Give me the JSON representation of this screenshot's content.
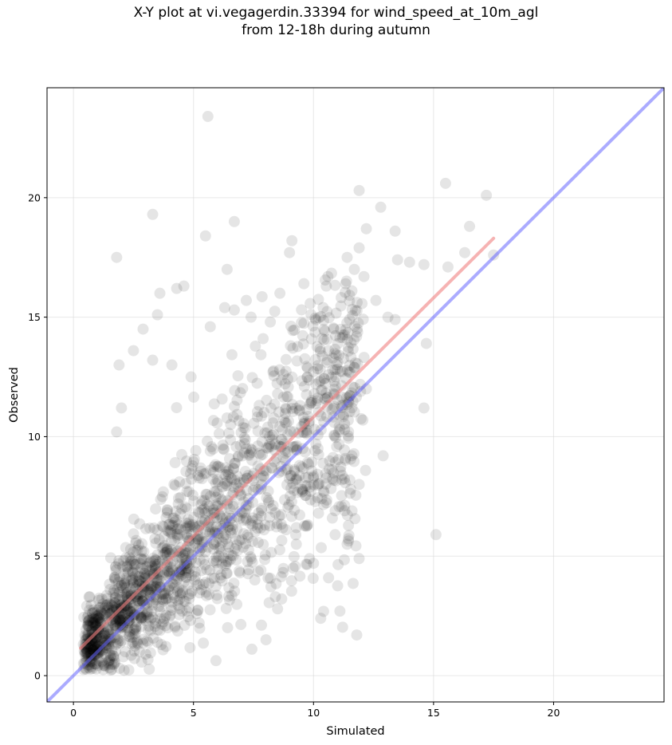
{
  "chart_data": {
    "type": "scatter",
    "title": [
      "X-Y plot at vi.vegagerdin.33394 for wind_speed_at_10m_agl",
      "from 12-18h during autumn"
    ],
    "xlabel": "Simulated",
    "ylabel": "Observed",
    "xlim": [
      -1.1,
      24.6
    ],
    "ylim": [
      -1.1,
      24.6
    ],
    "xticks": [
      0,
      5,
      10,
      15,
      20
    ],
    "yticks": [
      0,
      5,
      10,
      15,
      20
    ],
    "grid": true,
    "colors": {
      "points": "#000000",
      "fit_line": "#f08080",
      "identity_line": "#6666ff",
      "grid": "#d9d9d9"
    },
    "points_opacity": 0.1,
    "fit_line": {
      "x": [
        0.3,
        17.5
      ],
      "y": [
        1.15,
        18.3
      ]
    },
    "identity_line": {
      "x": [
        -1.1,
        24.6
      ],
      "y": [
        -1.1,
        24.6
      ]
    },
    "outliers": [
      [
        5.6,
        23.4
      ],
      [
        3.3,
        19.3
      ],
      [
        6.7,
        19.0
      ],
      [
        1.8,
        17.5
      ],
      [
        5.5,
        18.4
      ],
      [
        6.4,
        17.0
      ],
      [
        3.6,
        16.0
      ],
      [
        4.6,
        16.3
      ],
      [
        4.3,
        16.2
      ],
      [
        3.5,
        15.1
      ],
      [
        2.9,
        14.5
      ],
      [
        2.5,
        13.6
      ],
      [
        1.9,
        13.0
      ],
      [
        3.3,
        13.2
      ],
      [
        4.1,
        13.0
      ],
      [
        4.9,
        12.5
      ],
      [
        2.0,
        11.2
      ],
      [
        1.8,
        10.2
      ],
      [
        11.9,
        20.3
      ],
      [
        15.5,
        20.6
      ],
      [
        17.2,
        20.1
      ],
      [
        12.8,
        19.6
      ],
      [
        16.5,
        18.8
      ],
      [
        13.4,
        18.6
      ],
      [
        12.2,
        18.7
      ],
      [
        9.1,
        18.2
      ],
      [
        9.0,
        17.7
      ],
      [
        11.4,
        17.5
      ],
      [
        11.9,
        17.9
      ],
      [
        13.5,
        17.4
      ],
      [
        14.0,
        17.3
      ],
      [
        14.6,
        17.2
      ],
      [
        15.6,
        17.1
      ],
      [
        17.5,
        17.6
      ],
      [
        16.3,
        17.7
      ],
      [
        12.1,
        16.7
      ],
      [
        10.6,
        16.7
      ],
      [
        9.6,
        16.4
      ],
      [
        8.6,
        16.0
      ],
      [
        11.6,
        16.1
      ],
      [
        12.6,
        15.7
      ],
      [
        10.4,
        15.4
      ],
      [
        13.1,
        15.0
      ],
      [
        13.4,
        14.9
      ],
      [
        11.5,
        14.9
      ],
      [
        14.7,
        13.9
      ],
      [
        12.2,
        12.0
      ],
      [
        12.9,
        9.2
      ],
      [
        14.6,
        11.2
      ],
      [
        15.1,
        5.9
      ],
      [
        11.9,
        8.0
      ],
      [
        11.3,
        6.9
      ],
      [
        11.4,
        5.5
      ],
      [
        10.9,
        5.9
      ],
      [
        10.3,
        2.4
      ],
      [
        11.1,
        2.7
      ],
      [
        11.8,
        1.7
      ],
      [
        10.0,
        4.7
      ],
      [
        7.2,
        15.7
      ],
      [
        7.4,
        15.0
      ],
      [
        8.2,
        14.8
      ],
      [
        6.7,
        15.3
      ],
      [
        6.3,
        15.4
      ],
      [
        5.7,
        14.6
      ],
      [
        7.9,
        14.1
      ]
    ]
  }
}
